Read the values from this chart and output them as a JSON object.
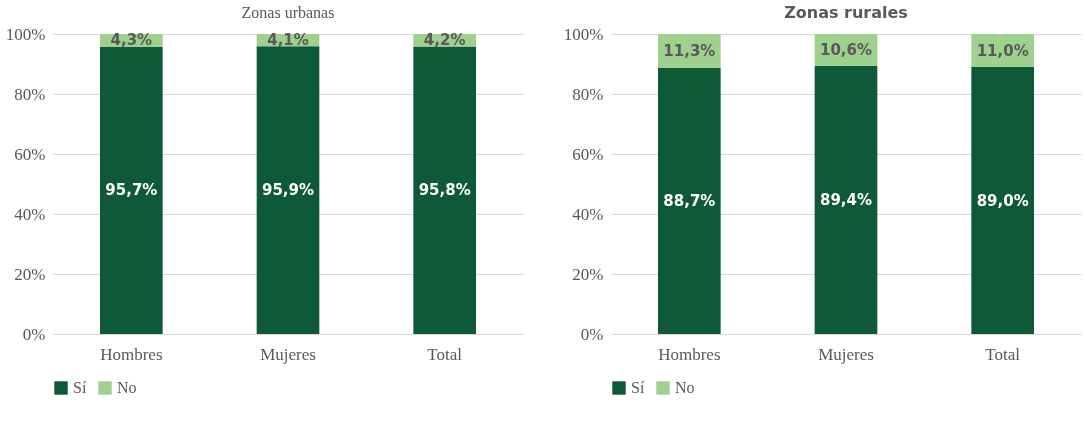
{
  "chart_data": [
    {
      "type": "bar",
      "title": "Zonas urbanas",
      "categories": [
        "Hombres",
        "Mujeres",
        "Total"
      ],
      "stacked": true,
      "ylim": [
        0,
        100
      ],
      "yticks": [
        {
          "value": 0,
          "label": "0%"
        },
        {
          "value": 20,
          "label": "20%"
        },
        {
          "value": 40,
          "label": "40%"
        },
        {
          "value": 60,
          "label": "60%"
        },
        {
          "value": 80,
          "label": "80%"
        },
        {
          "value": 100,
          "label": "100%"
        }
      ],
      "grid": "y",
      "legend": "bottom",
      "series": [
        {
          "name": "Sí",
          "color": "#0e5a38",
          "values": [
            95.7,
            95.9,
            95.8
          ],
          "value_labels": [
            "95,7%",
            "95,9%",
            "95,8%"
          ]
        },
        {
          "name": "No",
          "color": "#9fd18e",
          "values": [
            4.3,
            4.1,
            4.2
          ],
          "value_labels": [
            "4,3%",
            "4,1%",
            "4,2%"
          ]
        }
      ]
    },
    {
      "type": "bar",
      "title": "Zonas rurales",
      "categories": [
        "Hombres",
        "Mujeres",
        "Total"
      ],
      "stacked": true,
      "ylim": [
        0,
        100
      ],
      "yticks": [
        {
          "value": 0,
          "label": "0%"
        },
        {
          "value": 20,
          "label": "20%"
        },
        {
          "value": 40,
          "label": "40%"
        },
        {
          "value": 60,
          "label": "60%"
        },
        {
          "value": 80,
          "label": "80%"
        },
        {
          "value": 100,
          "label": "100%"
        }
      ],
      "grid": "y",
      "legend": "bottom",
      "series": [
        {
          "name": "Sí",
          "color": "#0e5a38",
          "values": [
            88.7,
            89.4,
            89.0
          ],
          "value_labels": [
            "88,7%",
            "89,4%",
            "89,0%"
          ]
        },
        {
          "name": "No",
          "color": "#9fd18e",
          "values": [
            11.3,
            10.6,
            11.0
          ],
          "value_labels": [
            "11,3%",
            "10,6%",
            "11,0%"
          ]
        }
      ]
    }
  ]
}
